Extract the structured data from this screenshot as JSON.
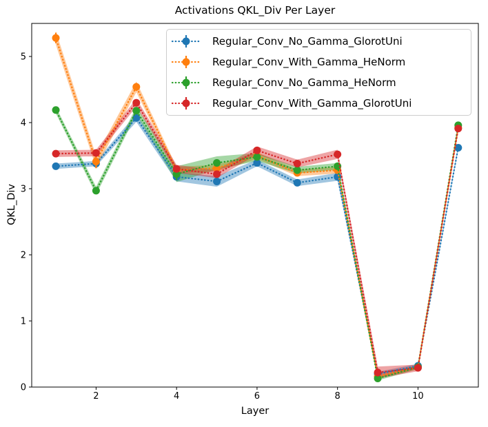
{
  "figure": {
    "background": "#ffffff",
    "spine_color": "#000000",
    "text_color": "#000000",
    "legend_border_color": "#cccccc"
  },
  "chart_data": {
    "type": "line",
    "title": "Activations QKL_Div Per Layer",
    "xlabel": "Layer",
    "ylabel": "QKL_Div",
    "x": [
      1,
      2,
      3,
      4,
      5,
      6,
      7,
      8,
      9,
      10,
      11
    ],
    "xticks": [
      2,
      4,
      6,
      8,
      10
    ],
    "yticks": [
      0,
      1,
      2,
      3,
      4,
      5
    ],
    "xlim": [
      0.4,
      11.5
    ],
    "ylim": [
      0,
      5.5
    ],
    "grid": false,
    "legend_position": "upper right",
    "line_style": "dotted",
    "marker": "circle",
    "series": [
      {
        "name": "Regular_Conv_No_Gamma_GlorotUni",
        "color": "#1f77b4",
        "values": [
          3.34,
          3.38,
          4.07,
          3.18,
          3.11,
          3.39,
          3.09,
          3.18,
          0.2,
          0.32,
          3.62
        ],
        "err": [
          0.03,
          0.03,
          0.04,
          0.04,
          0.04,
          0.03,
          0.03,
          0.04,
          0.02,
          0.03,
          0.05
        ],
        "band": [
          0.04,
          0.04,
          0.06,
          0.07,
          0.08,
          0.05,
          0.05,
          0.06,
          0.03,
          0.03,
          0.04
        ]
      },
      {
        "name": "Regular_Conv_With_Gamma_HeNorm",
        "color": "#ff7f0e",
        "values": [
          5.28,
          3.41,
          4.54,
          3.28,
          3.31,
          3.5,
          3.24,
          3.28,
          0.16,
          0.3,
          3.92
        ],
        "err": [
          0.08,
          0.1,
          0.06,
          0.03,
          0.03,
          0.03,
          0.03,
          0.03,
          0.02,
          0.02,
          0.04
        ],
        "band": [
          0.1,
          0.09,
          0.08,
          0.05,
          0.05,
          0.05,
          0.05,
          0.05,
          0.03,
          0.03,
          0.05
        ]
      },
      {
        "name": "Regular_Conv_No_Gamma_HeNorm",
        "color": "#2ca02c",
        "values": [
          4.19,
          2.97,
          4.18,
          3.22,
          3.39,
          3.48,
          3.28,
          3.34,
          0.13,
          0.3,
          3.96
        ],
        "err": [
          0.04,
          0.05,
          0.04,
          0.09,
          0.05,
          0.03,
          0.03,
          0.03,
          0.02,
          0.02,
          0.04
        ],
        "band": [
          0.05,
          0.06,
          0.06,
          0.12,
          0.1,
          0.06,
          0.05,
          0.05,
          0.03,
          0.03,
          0.05
        ]
      },
      {
        "name": "Regular_Conv_With_Gamma_GlorotUni",
        "color": "#d62728",
        "values": [
          3.53,
          3.54,
          4.3,
          3.3,
          3.22,
          3.58,
          3.38,
          3.52,
          0.22,
          0.29,
          3.91
        ],
        "err": [
          0.03,
          0.03,
          0.05,
          0.03,
          0.03,
          0.03,
          0.03,
          0.03,
          0.06,
          0.03,
          0.04
        ],
        "band": [
          0.05,
          0.05,
          0.06,
          0.06,
          0.06,
          0.06,
          0.06,
          0.07,
          0.09,
          0.05,
          0.05
        ]
      }
    ]
  }
}
